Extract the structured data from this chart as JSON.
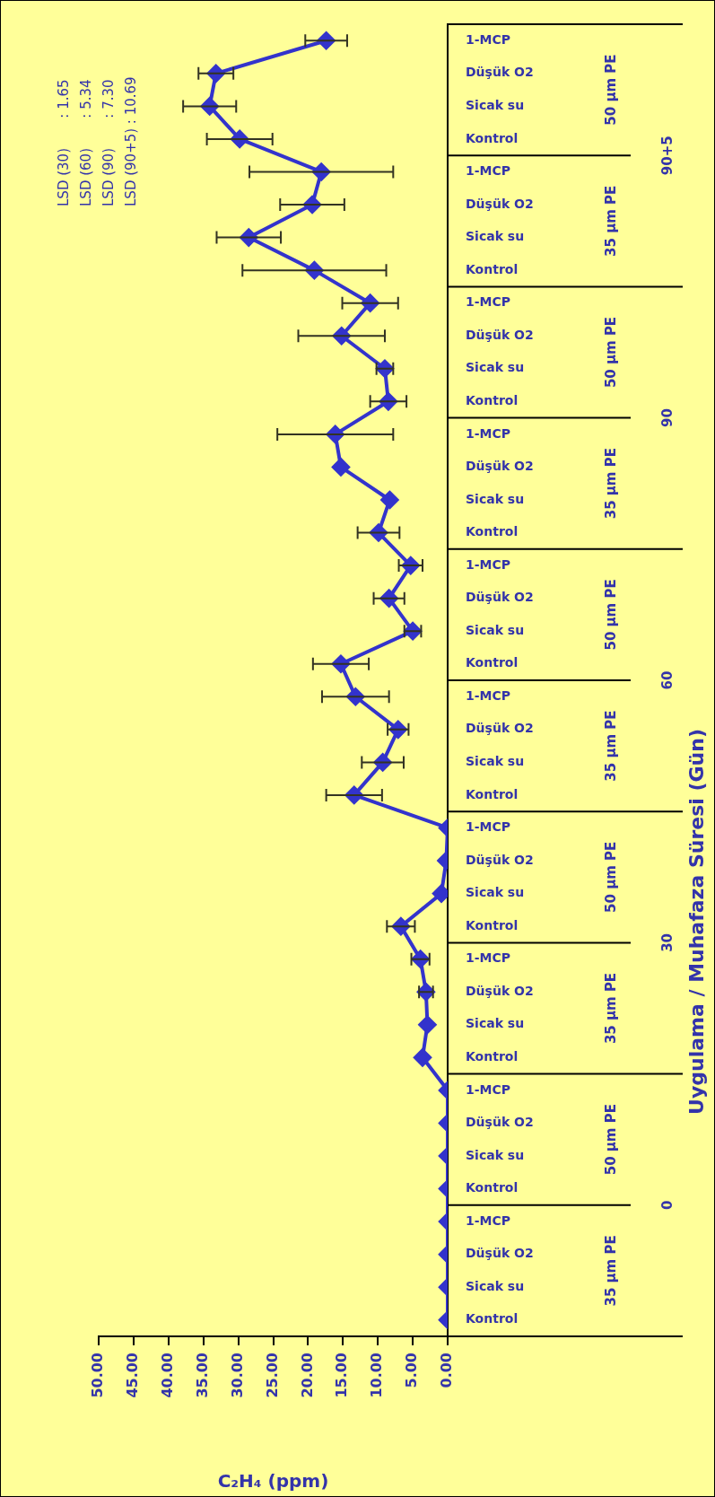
{
  "chart_data": {
    "type": "line",
    "orientation": "horizontal",
    "xlabel": "C₂H₄ (ppm)",
    "categories": [
      "1-MCP",
      "Düşük O2",
      "Sicak su",
      "Kontrol",
      "1-MCP",
      "Düşük O2",
      "Sicak su",
      "Kontrol",
      "1-MCP",
      "Düşük O2",
      "Sicak su",
      "Kontrol",
      "1-MCP",
      "Düşük O2",
      "Sicak su",
      "Kontrol",
      "1-MCP",
      "Düşük O2",
      "Sicak su",
      "Kontrol",
      "1-MCP",
      "Düşük O2",
      "Sicak su",
      "Kontrol",
      "1-MCP",
      "Düşük O2",
      "Sicak su",
      "Kontrol",
      "1-MCP",
      "Düşük O2",
      "Sicak su",
      "Kontrol",
      "1-MCP",
      "Düşük O2",
      "Sicak su",
      "Kontrol",
      "1-MCP",
      "Düşük O2",
      "Sicak su",
      "Kontrol"
    ],
    "series": [
      {
        "color": "#3333cc",
        "values": [
          17.4,
          33.2,
          34.1,
          29.8,
          18.1,
          19.4,
          28.5,
          19.1,
          11.1,
          15.2,
          9.0,
          8.5,
          16.1,
          15.3,
          8.3,
          9.9,
          5.3,
          8.4,
          5.0,
          15.3,
          13.2,
          7.1,
          9.3,
          13.4,
          0,
          0.2,
          0.9,
          6.7,
          3.9,
          3.1,
          2.9,
          3.6,
          0,
          0,
          0,
          0,
          0,
          0,
          0,
          0
        ],
        "errors": [
          3.0,
          2.5,
          3.8,
          4.7,
          10.3,
          4.6,
          4.6,
          10.3,
          4.0,
          6.2,
          1.2,
          2.6,
          8.3,
          null,
          null,
          3.0,
          1.7,
          2.2,
          1.2,
          4.0,
          4.8,
          1.5,
          3.0,
          4.0,
          null,
          null,
          null,
          2.0,
          1.3,
          1.0,
          null,
          null,
          null,
          null,
          null,
          null,
          null,
          null,
          null,
          null
        ]
      }
    ],
    "xlim": [
      50,
      0
    ],
    "xticks": [
      {
        "value": 0,
        "label": "0.00"
      },
      {
        "value": 5,
        "label": "5.00"
      },
      {
        "value": 10,
        "label": "10.00"
      },
      {
        "value": 15,
        "label": "15.00"
      },
      {
        "value": 20,
        "label": "20.00"
      },
      {
        "value": 25,
        "label": "25.00"
      },
      {
        "value": 30,
        "label": "30.00"
      },
      {
        "value": 35,
        "label": "35.00"
      },
      {
        "value": 40,
        "label": "40.00"
      },
      {
        "value": 45,
        "label": "45.00"
      },
      {
        "value": 50,
        "label": "50.00"
      }
    ],
    "marker": "diamond",
    "line_style": "solid",
    "legend": false,
    "annotations": [
      "50 µm PE",
      "35 µm PE",
      "50 µm PE",
      "35 µm PE",
      "50 µm PE",
      "35 µm PE",
      "50 µm PE",
      "35 µm PE",
      "50 µm PE",
      "35 µm PE",
      "90+5",
      "90",
      "60",
      "30",
      "0",
      "LSD (30)       : 1.65",
      "LSD (60)       : 5.34",
      "LSD (90)       : 7.30",
      "LSD (90+5) : 10.69",
      "Uygulama / Muhafaza Süresi (Gün)"
    ]
  }
}
